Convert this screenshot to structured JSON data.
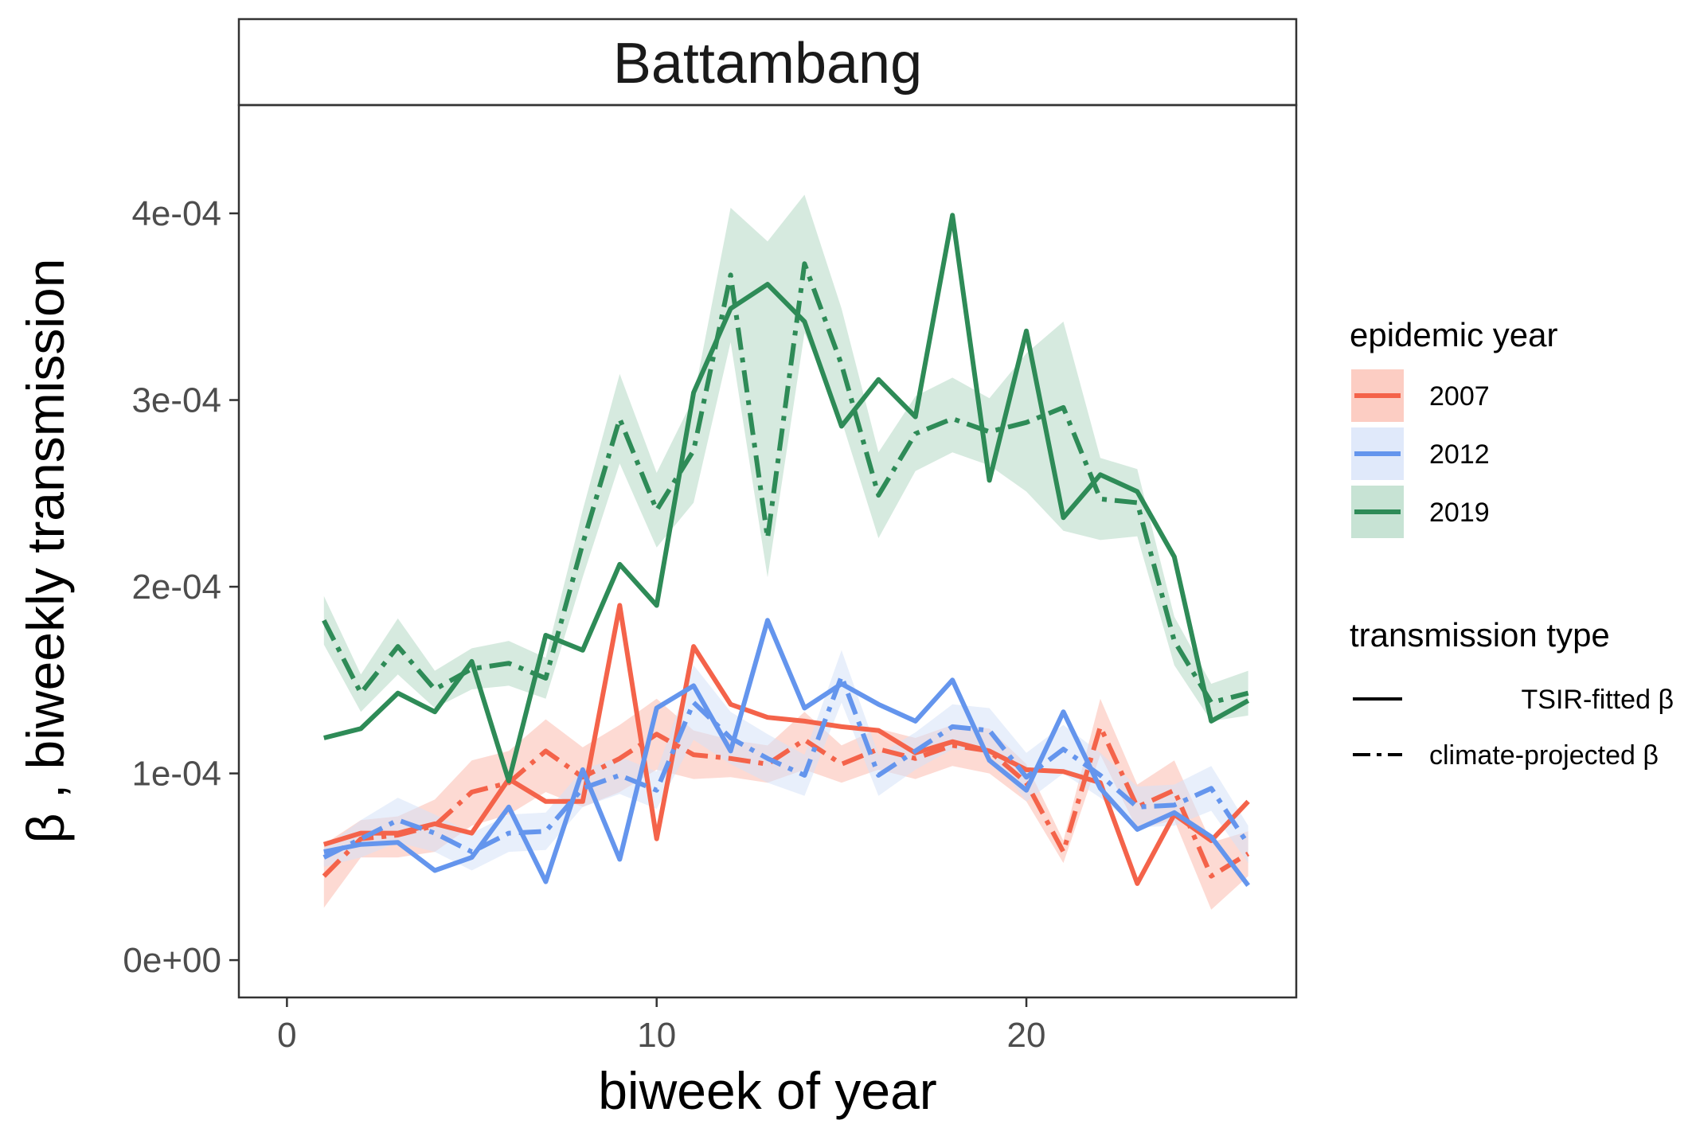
{
  "chart_data": {
    "type": "line",
    "facet_title": "Battambang",
    "xlabel": "biweek of year",
    "ylabel": "β , biweekly transmission",
    "xlim": [
      -1.3,
      27.3
    ],
    "ylim": [
      -2e-05,
      0.000458
    ],
    "x_ticks": [
      0,
      10,
      20
    ],
    "x_tick_labels": [
      "0",
      "10",
      "20"
    ],
    "y_ticks": [
      0,
      0.0001,
      0.0002,
      0.0003,
      0.0004
    ],
    "y_tick_labels": [
      "0e+00",
      "1e-04",
      "2e-04",
      "3e-04",
      "4e-04"
    ],
    "grid": false,
    "legend_position": "right",
    "x": [
      1,
      2,
      3,
      4,
      5,
      6,
      7,
      8,
      9,
      10,
      11,
      12,
      13,
      14,
      15,
      16,
      17,
      18,
      19,
      20,
      21,
      22,
      23,
      24,
      25,
      26
    ],
    "series": [
      {
        "name": "2007",
        "color": "#F4634A",
        "fill": "#FBBCAF",
        "fitted": [
          6.2e-05,
          6.8e-05,
          6.8e-05,
          7.3e-05,
          6.8e-05,
          9.7e-05,
          8.5e-05,
          8.5e-05,
          0.00019,
          6.5e-05,
          0.000168,
          0.000137,
          0.00013,
          0.000128,
          0.000125,
          0.000123,
          0.000111,
          0.000117,
          0.000112,
          0.000102,
          0.000101,
          9.5e-05,
          4.1e-05,
          7.8e-05,
          6.4e-05,
          8.5e-05
        ],
        "projected": [
          4.5e-05,
          6.5e-05,
          6.7e-05,
          7.2e-05,
          9e-05,
          9.5e-05,
          0.000112,
          9.8e-05,
          0.000108,
          0.000121,
          0.00011,
          0.000108,
          0.000105,
          0.000118,
          0.000105,
          0.000113,
          0.000108,
          0.000115,
          0.000112,
          9.5e-05,
          5.8e-05,
          0.000125,
          8.2e-05,
          9.1e-05,
          4.5e-05,
          5.7e-05
        ],
        "band_lower": [
          2.8e-05,
          5.5e-05,
          5.5e-05,
          5.8e-05,
          7.2e-05,
          7.8e-05,
          9e-05,
          8.2e-05,
          9e-05,
          0.000102,
          9.7e-05,
          9.8e-05,
          9.5e-05,
          0.000102,
          9.5e-05,
          0.000102,
          9.7e-05,
          0.000104,
          0.0001,
          8.5e-05,
          5.2e-05,
          0.00011,
          7e-05,
          7.5e-05,
          2.7e-05,
          4.5e-05
        ],
        "band_upper": [
          6.2e-05,
          7.5e-05,
          7.7e-05,
          8.6e-05,
          0.000107,
          0.000112,
          0.000129,
          0.000114,
          0.000126,
          0.00014,
          0.000123,
          0.000118,
          0.000115,
          0.000133,
          0.000115,
          0.000124,
          0.000119,
          0.000126,
          0.000124,
          0.000105,
          6.4e-05,
          0.00014,
          9.4e-05,
          0.000107,
          6.3e-05,
          6.9e-05
        ]
      },
      {
        "name": "2012",
        "color": "#6495ED",
        "fill": "#D5E1F8",
        "fitted": [
          5.8e-05,
          6.2e-05,
          6.3e-05,
          4.8e-05,
          5.5e-05,
          8.2e-05,
          4.2e-05,
          0.000102,
          5.4e-05,
          0.000135,
          0.000147,
          0.000112,
          0.000182,
          0.000135,
          0.000148,
          0.000137,
          0.000128,
          0.00015,
          0.000107,
          9.1e-05,
          0.000133,
          9.2e-05,
          7e-05,
          7.9e-05,
          6.6e-05,
          4e-05
        ],
        "projected": [
          5.5e-05,
          6.5e-05,
          7.5e-05,
          6.8e-05,
          5.8e-05,
          6.8e-05,
          6.9e-05,
          9.2e-05,
          9.9e-05,
          9.1e-05,
          0.000138,
          0.000119,
          0.000108,
          9.9e-05,
          0.000152,
          9.9e-05,
          0.000112,
          0.000125,
          0.000123,
          9.8e-05,
          0.000113,
          9.9e-05,
          8.2e-05,
          8.3e-05,
          9.2e-05,
          6.2e-05
        ],
        "band_lower": [
          5e-05,
          5.5e-05,
          6.3e-05,
          5.8e-05,
          4.8e-05,
          5.8e-05,
          5.9e-05,
          8.2e-05,
          8.9e-05,
          8.1e-05,
          0.000118,
          0.000105,
          9.5e-05,
          8.8e-05,
          0.000138,
          8.8e-05,
          0.000102,
          0.000113,
          0.000111,
          8.5e-05,
          0.0001,
          8.7e-05,
          7.1e-05,
          7.2e-05,
          8e-05,
          5.2e-05
        ],
        "band_upper": [
          6e-05,
          7.5e-05,
          8.7e-05,
          7.8e-05,
          6.8e-05,
          7.8e-05,
          7.9e-05,
          0.000102,
          0.000109,
          0.000101,
          0.000158,
          0.000133,
          0.000121,
          0.00011,
          0.000166,
          0.00011,
          0.000122,
          0.000137,
          0.000135,
          0.000111,
          0.000126,
          0.000111,
          9.3e-05,
          9.4e-05,
          0.000104,
          7.2e-05
        ]
      },
      {
        "name": "2019",
        "color": "#2E8B57",
        "fill": "#B4D9C5",
        "fitted": [
          0.000119,
          0.000124,
          0.000143,
          0.000133,
          0.00016,
          9.6e-05,
          0.000174,
          0.000166,
          0.000212,
          0.00019,
          0.000304,
          0.000349,
          0.000362,
          0.000342,
          0.000286,
          0.000311,
          0.000291,
          0.000399,
          0.000257,
          0.000337,
          0.000237,
          0.00026,
          0.000251,
          0.000216,
          0.000128,
          0.000139
        ],
        "projected": [
          0.000182,
          0.000143,
          0.000168,
          0.000145,
          0.000156,
          0.000159,
          0.000151,
          0.000223,
          0.00029,
          0.000241,
          0.000273,
          0.000367,
          0.000226,
          0.000373,
          0.000319,
          0.000249,
          0.000282,
          0.00029,
          0.000283,
          0.000288,
          0.000296,
          0.000247,
          0.000245,
          0.000171,
          0.000138,
          0.000143
        ],
        "band_lower": [
          0.000169,
          0.000133,
          0.000153,
          0.000135,
          0.000145,
          0.000147,
          0.00014,
          0.000205,
          0.000266,
          0.000221,
          0.000245,
          0.000331,
          0.000205,
          0.000336,
          0.000289,
          0.000226,
          0.000262,
          0.000272,
          0.000265,
          0.000251,
          0.00023,
          0.000225,
          0.000227,
          0.000158,
          0.000128,
          0.000131
        ],
        "band_upper": [
          0.000195,
          0.000153,
          0.000183,
          0.000155,
          0.000167,
          0.000171,
          0.000162,
          0.000241,
          0.000314,
          0.000261,
          0.000301,
          0.000403,
          0.000385,
          0.00041,
          0.000349,
          0.000272,
          0.000302,
          0.000312,
          0.000301,
          0.000325,
          0.000342,
          0.000269,
          0.000263,
          0.000184,
          0.000148,
          0.000155
        ]
      }
    ],
    "legend": {
      "color_title": "epidemic year",
      "color_entries": [
        "2007",
        "2012",
        "2019"
      ],
      "linetype_title": "transmission type",
      "linetype_entries": [
        "TSIR-fitted β",
        "climate-projected β"
      ]
    }
  }
}
